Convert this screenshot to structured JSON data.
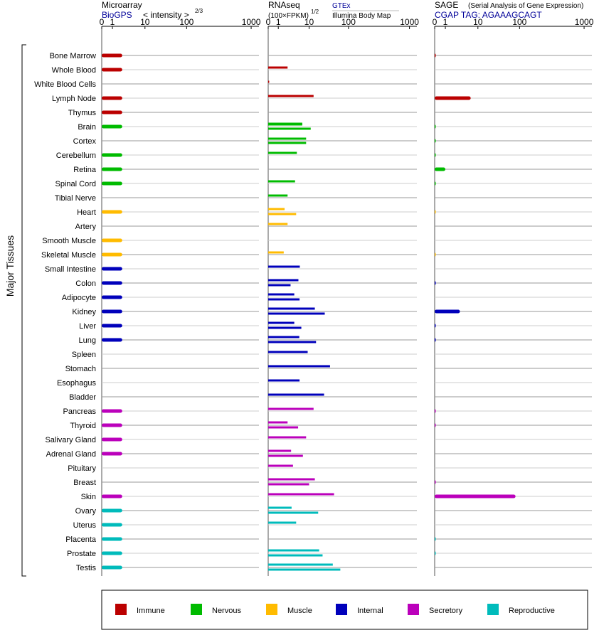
{
  "headers": {
    "microarray": {
      "title": "Microarray",
      "source": "BioGPS",
      "scale_label": "< intensity >",
      "scale_exp": "2/3"
    },
    "rnaseq": {
      "title": "RNAseq",
      "unit": "(100×FPKM)",
      "unit_exp": "1/2",
      "source_top": "GTEx",
      "source_bottom": "Illumina Body Map"
    },
    "sage": {
      "title": "SAGE",
      "subtitle": "(Serial Analysis of Gene Expression)",
      "tag": "CGAP TAG: AGAAAGCAGT"
    }
  },
  "axis_ticks": [
    "0",
    "1",
    "10",
    "100",
    "1000"
  ],
  "y_group_label": "Major Tissues",
  "colors": {
    "Immune": "#bb0000",
    "Nervous": "#00bb00",
    "Muscle": "#ffbb00",
    "Internal": "#0000bb",
    "Secretory": "#bb00bb",
    "Reproductive": "#00bbbb"
  },
  "legend": [
    "Immune",
    "Nervous",
    "Muscle",
    "Internal",
    "Secretory",
    "Reproductive"
  ],
  "chart_data": {
    "type": "bar",
    "orientation": "horizontal",
    "x_scale": "log-like (0, 1, 10, 100, 1000)",
    "xlim": [
      0,
      1000
    ],
    "categories": [
      "Bone Marrow",
      "Whole Blood",
      "White Blood Cells",
      "Lymph Node",
      "Thymus",
      "Brain",
      "Cortex",
      "Cerebellum",
      "Retina",
      "Spinal Cord",
      "Tibial Nerve",
      "Heart",
      "Artery",
      "Smooth Muscle",
      "Skeletal Muscle",
      "Small Intestine",
      "Colon",
      "Adipocyte",
      "Kidney",
      "Liver",
      "Lung",
      "Spleen",
      "Stomach",
      "Esophagus",
      "Bladder",
      "Pancreas",
      "Thyroid",
      "Salivary Gland",
      "Adrenal Gland",
      "Pituitary",
      "Breast",
      "Skin",
      "Ovary",
      "Uterus",
      "Placenta",
      "Prostate",
      "Testis"
    ],
    "category_group": [
      "Immune",
      "Immune",
      "Immune",
      "Immune",
      "Immune",
      "Nervous",
      "Nervous",
      "Nervous",
      "Nervous",
      "Nervous",
      "Nervous",
      "Muscle",
      "Muscle",
      "Muscle",
      "Muscle",
      "Internal",
      "Internal",
      "Internal",
      "Internal",
      "Internal",
      "Internal",
      "Internal",
      "Internal",
      "Internal",
      "Internal",
      "Secretory",
      "Secretory",
      "Secretory",
      "Secretory",
      "Secretory",
      "Secretory",
      "Secretory",
      "Reproductive",
      "Reproductive",
      "Reproductive",
      "Reproductive",
      "Reproductive"
    ],
    "series": [
      {
        "name": "Microarray",
        "values": [
          2,
          2,
          null,
          2,
          2,
          2,
          null,
          2,
          2,
          2,
          null,
          2,
          null,
          2,
          2,
          2,
          2,
          2,
          2,
          2,
          2,
          null,
          null,
          null,
          null,
          2,
          2,
          2,
          2,
          null,
          null,
          2,
          2,
          2,
          2,
          2,
          2
        ]
      },
      {
        "name": "RNAseq GTEx",
        "values": [
          null,
          null,
          null,
          null,
          null,
          6,
          8,
          null,
          null,
          null,
          null,
          null,
          null,
          null,
          null,
          null,
          null,
          null,
          null,
          null,
          null,
          null,
          null,
          null,
          null,
          null,
          null,
          null,
          null,
          null,
          null,
          null,
          null,
          null,
          null,
          null,
          null
        ]
      },
      {
        "name": "RNAseq GTEx / Illumina",
        "values": [
          null,
          2,
          0.1,
          13,
          null,
          6,
          8,
          4,
          null,
          3.5,
          2,
          1.6,
          2,
          null,
          1.5,
          5,
          4.5,
          3.3,
          14,
          3.3,
          4.8,
          9,
          34,
          4.9,
          24,
          13,
          2,
          8,
          2.6,
          3,
          14,
          43,
          2.7,
          3.8,
          null,
          18,
          40
        ]
      },
      {
        "name": "RNAseq Illumina",
        "values": [
          null,
          null,
          null,
          null,
          null,
          11,
          null,
          null,
          null,
          null,
          null,
          3.8,
          null,
          null,
          null,
          null,
          2.5,
          4.9,
          25,
          5.6,
          15,
          null,
          null,
          null,
          null,
          null,
          4.4,
          null,
          6.3,
          null,
          10,
          null,
          17,
          null,
          null,
          22,
          62
        ]
      },
      {
        "name": "SAGE",
        "values": [
          0.05,
          null,
          null,
          6,
          null,
          0.05,
          0.05,
          0.05,
          1,
          0.05,
          null,
          0.02,
          null,
          null,
          0.02,
          null,
          0.05,
          null,
          2.8,
          0.05,
          0.05,
          null,
          null,
          null,
          null,
          0.05,
          0.05,
          null,
          null,
          null,
          0.05,
          80,
          null,
          null,
          0.05,
          0.05,
          null
        ]
      }
    ]
  }
}
